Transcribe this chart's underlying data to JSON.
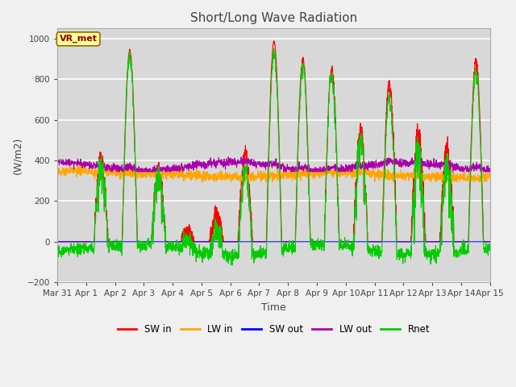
{
  "title": "Short/Long Wave Radiation",
  "xlabel": "Time",
  "ylabel": "(W/m2)",
  "station_label": "VR_met",
  "ylim": [
    -200,
    1050
  ],
  "yticks": [
    -200,
    0,
    200,
    400,
    600,
    800,
    1000
  ],
  "x_tick_labels": [
    "Mar 31",
    "Apr 1",
    "Apr 2",
    "Apr 3",
    "Apr 4",
    "Apr 5",
    "Apr 6",
    "Apr 7",
    "Apr 8",
    "Apr 9",
    "Apr 10",
    "Apr 11",
    "Apr 12",
    "Apr 13",
    "Apr 14",
    "Apr 15"
  ],
  "colors": {
    "SW_in": "#ff0000",
    "LW_in": "#ffa500",
    "SW_out": "#0000ff",
    "LW_out": "#aa00aa",
    "Rnet": "#00cc00"
  },
  "legend_labels": [
    "SW in",
    "LW in",
    "SW out",
    "LW out",
    "Rnet"
  ],
  "plot_bg_color": "#d8d8d8",
  "fig_bg_color": "#f0f0f0",
  "grid_color": "#ffffff",
  "label_box_facecolor": "#ffff99",
  "label_box_edgecolor": "#996600",
  "label_text_color": "#880000"
}
